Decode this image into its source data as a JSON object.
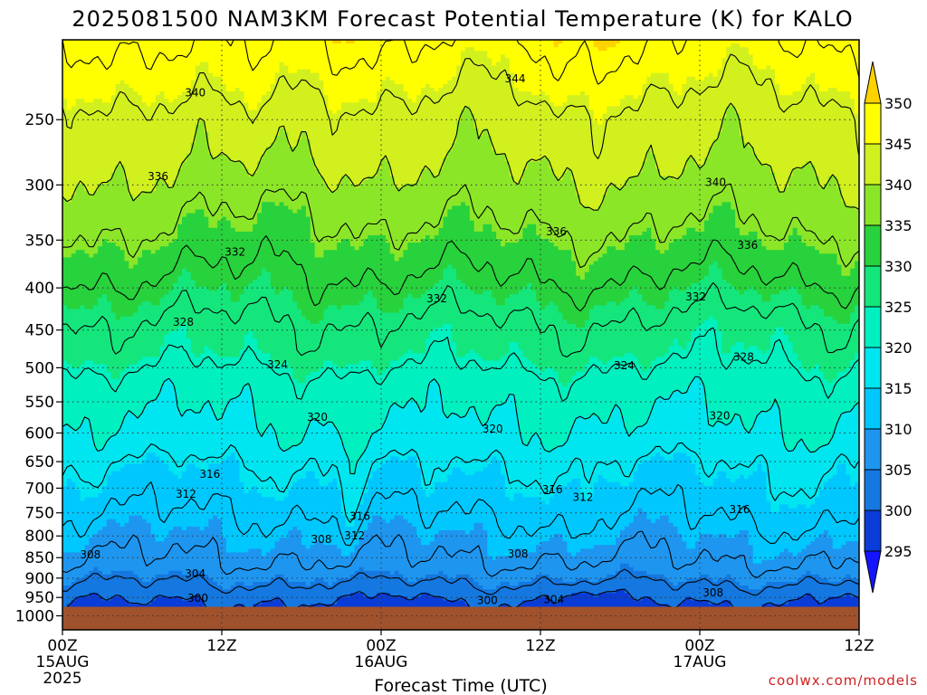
{
  "chart_data": {
    "type": "heatmap",
    "title": "2025081500 NAM3KM Forecast Potential Temperature (K) for KALO",
    "xlabel": "Forecast Time (UTC)",
    "x_ticks": [
      {
        "hour": 0,
        "label": "00Z",
        "sub": "15AUG",
        "sub2": "2025"
      },
      {
        "hour": 12,
        "label": "12Z",
        "sub": "",
        "sub2": ""
      },
      {
        "hour": 24,
        "label": "00Z",
        "sub": "16AUG",
        "sub2": ""
      },
      {
        "hour": 36,
        "label": "12Z",
        "sub": "",
        "sub2": ""
      },
      {
        "hour": 48,
        "label": "00Z",
        "sub": "17AUG",
        "sub2": ""
      },
      {
        "hour": 60,
        "label": "12Z",
        "sub": "",
        "sub2": ""
      }
    ],
    "xlim": [
      0,
      60
    ],
    "ylim_hpa": [
      200,
      1040
    ],
    "y_ticks": [
      250,
      300,
      350,
      400,
      450,
      500,
      550,
      600,
      650,
      700,
      750,
      800,
      850,
      900,
      950,
      1000
    ],
    "ground_hpa": 975,
    "grid": true,
    "colorbar": {
      "levels": [
        295,
        300,
        305,
        310,
        315,
        320,
        325,
        330,
        335,
        340,
        345,
        350
      ],
      "colors": [
        "#1414ff",
        "#0a3cd8",
        "#1478e0",
        "#1e96f0",
        "#00c8ff",
        "#00e6f0",
        "#00f0c0",
        "#14e67c",
        "#28d23c",
        "#8ce628",
        "#d2f01e",
        "#ffff00",
        "#ffd200"
      ]
    },
    "contour_interval": 4,
    "contour_values": [
      300,
      304,
      308,
      312,
      316,
      320,
      324,
      328,
      332,
      336,
      340,
      344,
      348
    ],
    "profile": {
      "pressure_hpa": [
        975,
        950,
        925,
        900,
        875,
        850,
        825,
        800,
        775,
        750,
        725,
        700,
        675,
        650,
        625,
        600,
        575,
        550,
        525,
        500,
        475,
        450,
        425,
        400,
        375,
        350,
        325,
        300,
        275,
        250,
        225,
        200
      ],
      "theta_k": [
        299,
        301,
        303,
        305,
        307,
        308,
        309,
        310,
        311,
        312,
        313,
        314,
        315,
        316,
        318,
        319,
        320,
        321,
        322,
        324,
        326,
        327,
        329,
        331,
        333,
        335,
        337,
        339,
        341,
        342,
        345,
        348
      ]
    },
    "contour_labels": [
      {
        "value": "340",
        "hour": 10.0,
        "hpa": 232
      },
      {
        "value": "344",
        "hour": 34.1,
        "hpa": 223
      },
      {
        "value": "336",
        "hour": 7.2,
        "hpa": 293
      },
      {
        "value": "340",
        "hour": 49.2,
        "hpa": 298
      },
      {
        "value": "336",
        "hour": 37.2,
        "hpa": 342
      },
      {
        "value": "336",
        "hour": 51.6,
        "hpa": 355
      },
      {
        "value": "332",
        "hour": 13.0,
        "hpa": 362
      },
      {
        "value": "332",
        "hour": 28.2,
        "hpa": 412
      },
      {
        "value": "332",
        "hour": 47.7,
        "hpa": 410
      },
      {
        "value": "328",
        "hour": 9.1,
        "hpa": 440
      },
      {
        "value": "328",
        "hour": 51.3,
        "hpa": 485
      },
      {
        "value": "324",
        "hour": 16.2,
        "hpa": 496
      },
      {
        "value": "324",
        "hour": 42.3,
        "hpa": 497
      },
      {
        "value": "320",
        "hour": 19.2,
        "hpa": 574
      },
      {
        "value": "320",
        "hour": 32.4,
        "hpa": 593
      },
      {
        "value": "320",
        "hour": 49.5,
        "hpa": 572
      },
      {
        "value": "316",
        "hour": 11.1,
        "hpa": 673
      },
      {
        "value": "316",
        "hour": 36.9,
        "hpa": 703
      },
      {
        "value": "316",
        "hour": 51.0,
        "hpa": 743
      },
      {
        "value": "312",
        "hour": 9.3,
        "hpa": 712
      },
      {
        "value": "312",
        "hour": 39.2,
        "hpa": 718
      },
      {
        "value": "316",
        "hour": 22.4,
        "hpa": 757
      },
      {
        "value": "312",
        "hour": 22.0,
        "hpa": 800
      },
      {
        "value": "308",
        "hour": 19.5,
        "hpa": 808
      },
      {
        "value": "308",
        "hour": 2.1,
        "hpa": 843
      },
      {
        "value": "308",
        "hour": 34.3,
        "hpa": 841
      },
      {
        "value": "304",
        "hour": 10.0,
        "hpa": 889
      },
      {
        "value": "308",
        "hour": 49.0,
        "hpa": 937
      },
      {
        "value": "300",
        "hour": 10.2,
        "hpa": 952
      },
      {
        "value": "300",
        "hour": 32.0,
        "hpa": 958
      },
      {
        "value": "304",
        "hour": 37.0,
        "hpa": 956
      }
    ]
  },
  "credit": "coolwx.com/models"
}
